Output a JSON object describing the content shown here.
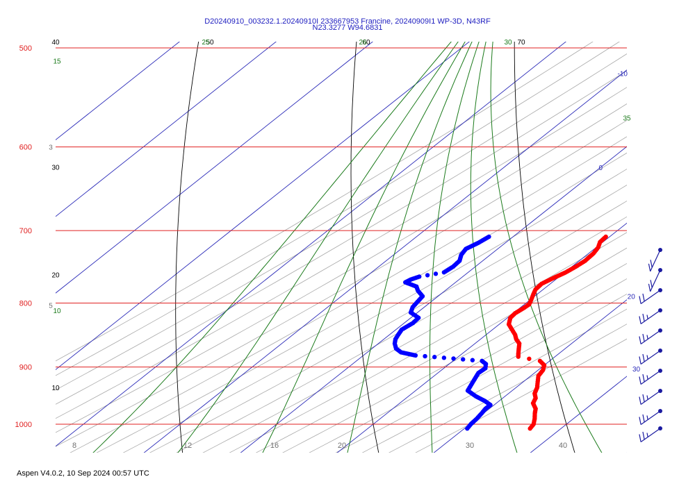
{
  "header": {
    "line1": "D20240910_003232.1.20240910I 233667953 Francine, 20240909I1 WP-3D, N43RF",
    "line2": "N23.3277 W94.6831"
  },
  "footer": {
    "text": "Aspen V4.0.2, 10 Sep 2024  00:57 UTC"
  },
  "colors": {
    "isobar": "#e02020",
    "isotherm": "#2a2ab8",
    "dry_adiabat": "#000000",
    "moist_adiabat": "#1a7a1a",
    "mixing_ratio": "#909090",
    "temperature_profile": "#ff0000",
    "dewpoint_profile": "#0000ff",
    "wind_barb": "#1a1aa0"
  },
  "chart_data": {
    "type": "skew-t",
    "pressure_axis": {
      "labels": [
        "500",
        "600",
        "700",
        "800",
        "900",
        "1000"
      ],
      "ylim": [
        500,
        1010
      ]
    },
    "temperature_axis": {
      "labels": [
        "8",
        "12",
        "16",
        "20",
        "30",
        "40"
      ]
    },
    "isotherm_labels": [
      {
        "value": "-10",
        "p": 524
      },
      {
        "value": "0",
        "p": 623
      },
      {
        "value": "20",
        "p": 790
      },
      {
        "value": "30",
        "p": 903
      }
    ],
    "dry_adiabat_labels": [
      {
        "value": "40",
        "p": 500,
        "side": "left"
      },
      {
        "value": "30",
        "p": 630,
        "side": "left"
      },
      {
        "value": "20",
        "p": 768,
        "side": "left"
      },
      {
        "value": "10",
        "p": 945,
        "side": "left"
      },
      {
        "value": "50",
        "p": 500,
        "side": "top"
      },
      {
        "value": "60",
        "p": 500,
        "side": "top"
      },
      {
        "value": "70",
        "p": 500,
        "side": "top"
      }
    ],
    "moist_adiabat_labels": [
      {
        "value": "15",
        "p": 518,
        "side": "left"
      },
      {
        "value": "10",
        "p": 820,
        "side": "left"
      },
      {
        "value": "25",
        "p": 500,
        "side": "top"
      },
      {
        "value": "26",
        "p": 500,
        "side": "top"
      },
      {
        "value": "30",
        "p": 500,
        "side": "top"
      },
      {
        "value": "35",
        "p": 575,
        "side": "right"
      }
    ],
    "mixing_ratio_labels": [
      {
        "value": "3",
        "p": 600
      },
      {
        "value": "5",
        "p": 803
      }
    ],
    "temperature_profile": [
      [
        708,
        9.6
      ],
      [
        715,
        9.7
      ],
      [
        722,
        10.2
      ],
      [
        730,
        10.5
      ],
      [
        740,
        10.6
      ],
      [
        748,
        10.4
      ],
      [
        756,
        10.1
      ],
      [
        765,
        9.5
      ],
      [
        772,
        9.1
      ],
      [
        780,
        9.2
      ],
      [
        787,
        9.6
      ],
      [
        795,
        10.1
      ],
      [
        802,
        10.5
      ],
      [
        808,
        10.4
      ],
      [
        815,
        10.2
      ],
      [
        822,
        10.3
      ],
      [
        832,
        11.0
      ],
      [
        840,
        12.0
      ],
      [
        848,
        13.0
      ],
      [
        855,
        13.7
      ],
      [
        862,
        14.6
      ],
      [
        870,
        15.2
      ],
      [
        878,
        15.8
      ],
      [
        883,
        16.2
      ],
      [
        890,
        19.0
      ],
      [
        897,
        20.0
      ],
      [
        905,
        20.5
      ],
      [
        915,
        20.8
      ],
      [
        925,
        21.5
      ],
      [
        935,
        22.2
      ],
      [
        945,
        22.7
      ],
      [
        953,
        23.4
      ],
      [
        962,
        23.8
      ],
      [
        972,
        24.8
      ],
      [
        980,
        25.3
      ],
      [
        990,
        26.0
      ],
      [
        1000,
        26.6
      ],
      [
        1008,
        26.8
      ]
    ],
    "dewpoint_profile": [
      [
        708,
        -2.5
      ],
      [
        716,
        -2.8
      ],
      [
        724,
        -3.3
      ],
      [
        732,
        -3.0
      ],
      [
        740,
        -2.4
      ],
      [
        748,
        -2.3
      ],
      [
        756,
        -2.5
      ],
      [
        762,
        -4.5
      ],
      [
        766,
        -5.0
      ],
      [
        770,
        -5.2
      ],
      [
        776,
        -3.5
      ],
      [
        782,
        -2.8
      ],
      [
        790,
        -1.6
      ],
      [
        798,
        -1.4
      ],
      [
        806,
        -1.2
      ],
      [
        814,
        -0.7
      ],
      [
        822,
        0.8
      ],
      [
        830,
        0.9
      ],
      [
        840,
        0.6
      ],
      [
        848,
        0.9
      ],
      [
        855,
        1.2
      ],
      [
        862,
        1.7
      ],
      [
        870,
        2.5
      ],
      [
        876,
        3.5
      ],
      [
        881,
        5.4
      ],
      [
        890,
        13.0
      ],
      [
        895,
        13.8
      ],
      [
        902,
        14.3
      ],
      [
        910,
        14.2
      ],
      [
        920,
        14.6
      ],
      [
        930,
        15.0
      ],
      [
        940,
        15.4
      ],
      [
        950,
        17.0
      ],
      [
        958,
        18.5
      ],
      [
        965,
        19.6
      ],
      [
        972,
        19.6
      ],
      [
        980,
        19.8
      ],
      [
        990,
        20.0
      ],
      [
        1000,
        20.1
      ],
      [
        1008,
        20.3
      ]
    ],
    "wind_barbs": [
      {
        "p": 730,
        "barbs": 2.5
      },
      {
        "p": 755,
        "barbs": 2
      },
      {
        "p": 780,
        "barbs": 2
      },
      {
        "p": 805,
        "barbs": 2
      },
      {
        "p": 830,
        "barbs": 2
      },
      {
        "p": 855,
        "barbs": 2
      },
      {
        "p": 880,
        "barbs": 2
      },
      {
        "p": 905,
        "barbs": 2.5
      },
      {
        "p": 930,
        "barbs": 2.5
      },
      {
        "p": 955,
        "barbs": 2.5
      },
      {
        "p": 980,
        "barbs": 2.5
      },
      {
        "p": 1005,
        "barbs": 2.5
      }
    ],
    "ordinal_bottom_ticks": [
      {
        "label": "8",
        "t": -7.0
      },
      {
        "label": "12",
        "t": -1.0
      },
      {
        "label": "16",
        "t": 4.8
      },
      {
        "label": "20",
        "t": 10.0
      },
      {
        "label": "30",
        "t": 20.0
      },
      {
        "label": "40",
        "t": 27.0
      }
    ]
  }
}
